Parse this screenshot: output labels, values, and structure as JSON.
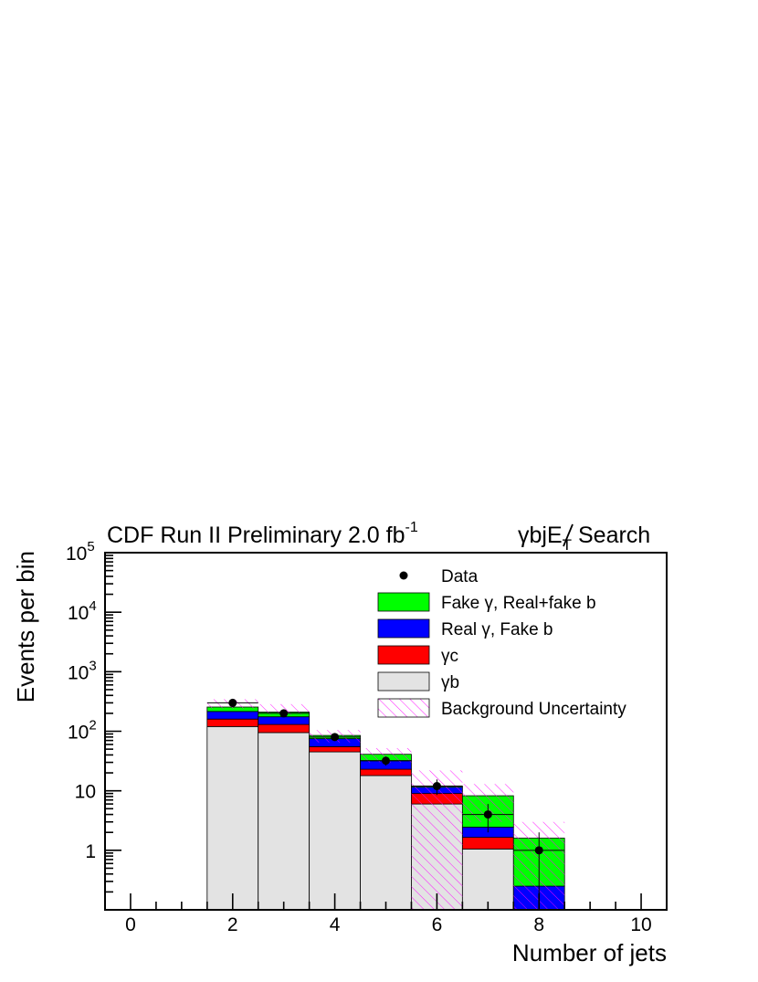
{
  "chart_data": {
    "type": "bar",
    "stacked": true,
    "title_left": "CDF Run II Preliminary 2.0 fb",
    "title_left_sup": "-1",
    "title_right_prefix": "γbj",
    "title_right_met": "E",
    "title_right_met_sub": "T",
    "title_right_suffix": " Search",
    "xlabel": "Number of jets",
    "ylabel": "Events per bin",
    "xlim": [
      -0.5,
      10.5
    ],
    "ylim_log": [
      0.1,
      100000
    ],
    "y_scale": "log",
    "x_ticks": [
      "0",
      "2",
      "4",
      "6",
      "8",
      "10"
    ],
    "y_ticks": [
      {
        "base": "1",
        "exp": ""
      },
      {
        "base": "10",
        "exp": ""
      },
      {
        "base": "10",
        "exp": "2"
      },
      {
        "base": "10",
        "exp": "3"
      },
      {
        "base": "10",
        "exp": "4"
      },
      {
        "base": "10",
        "exp": "5"
      }
    ],
    "bins": [
      2,
      3,
      4,
      5,
      6,
      7,
      8
    ],
    "series": [
      {
        "name": "γb",
        "color": "#e3e3e3",
        "values": [
          120,
          95,
          45,
          18,
          6,
          1.05,
          0
        ]
      },
      {
        "name": "γc",
        "color": "#ff0000",
        "values": [
          40,
          35,
          10,
          5,
          3,
          0.6,
          0
        ]
      },
      {
        "name": "Real γ, Fake b",
        "color": "#0000ff",
        "values": [
          55,
          45,
          20,
          9,
          2.5,
          0.8,
          0.25
        ]
      },
      {
        "name": "Fake γ, Real+fake b",
        "color": "#00ff00",
        "values": [
          40,
          35,
          10,
          9,
          0.5,
          5.8,
          1.35
        ]
      }
    ],
    "uncertainty": {
      "name": "Background Uncertainty",
      "color": "#ff00ff",
      "low": [
        240,
        190,
        65,
        30,
        0.1,
        3.0,
        0.1
      ],
      "high": [
        345,
        285,
        105,
        52,
        22,
        13,
        3.0
      ]
    },
    "data": {
      "name": "Data",
      "color": "#000000",
      "values": [
        300,
        200,
        80,
        32,
        12,
        4,
        1
      ],
      "err_low": [
        283,
        186,
        71,
        26.5,
        8.5,
        2.0,
        0.1
      ],
      "err_high": [
        317,
        214,
        89,
        37.5,
        15.5,
        6.0,
        2.0
      ]
    },
    "legend_position": "top-right",
    "legend": [
      {
        "label": "Data",
        "kind": "marker"
      },
      {
        "label": "Fake γ, Real+fake b",
        "kind": "fill",
        "color": "#00ff00"
      },
      {
        "label": "Real γ, Fake b",
        "kind": "fill",
        "color": "#0000ff"
      },
      {
        "label": "γc",
        "kind": "fill",
        "color": "#ff0000"
      },
      {
        "label": "γb",
        "kind": "fill",
        "color": "#e3e3e3"
      },
      {
        "label": "Background Uncertainty",
        "kind": "hatch",
        "color": "#ff00ff"
      }
    ]
  }
}
